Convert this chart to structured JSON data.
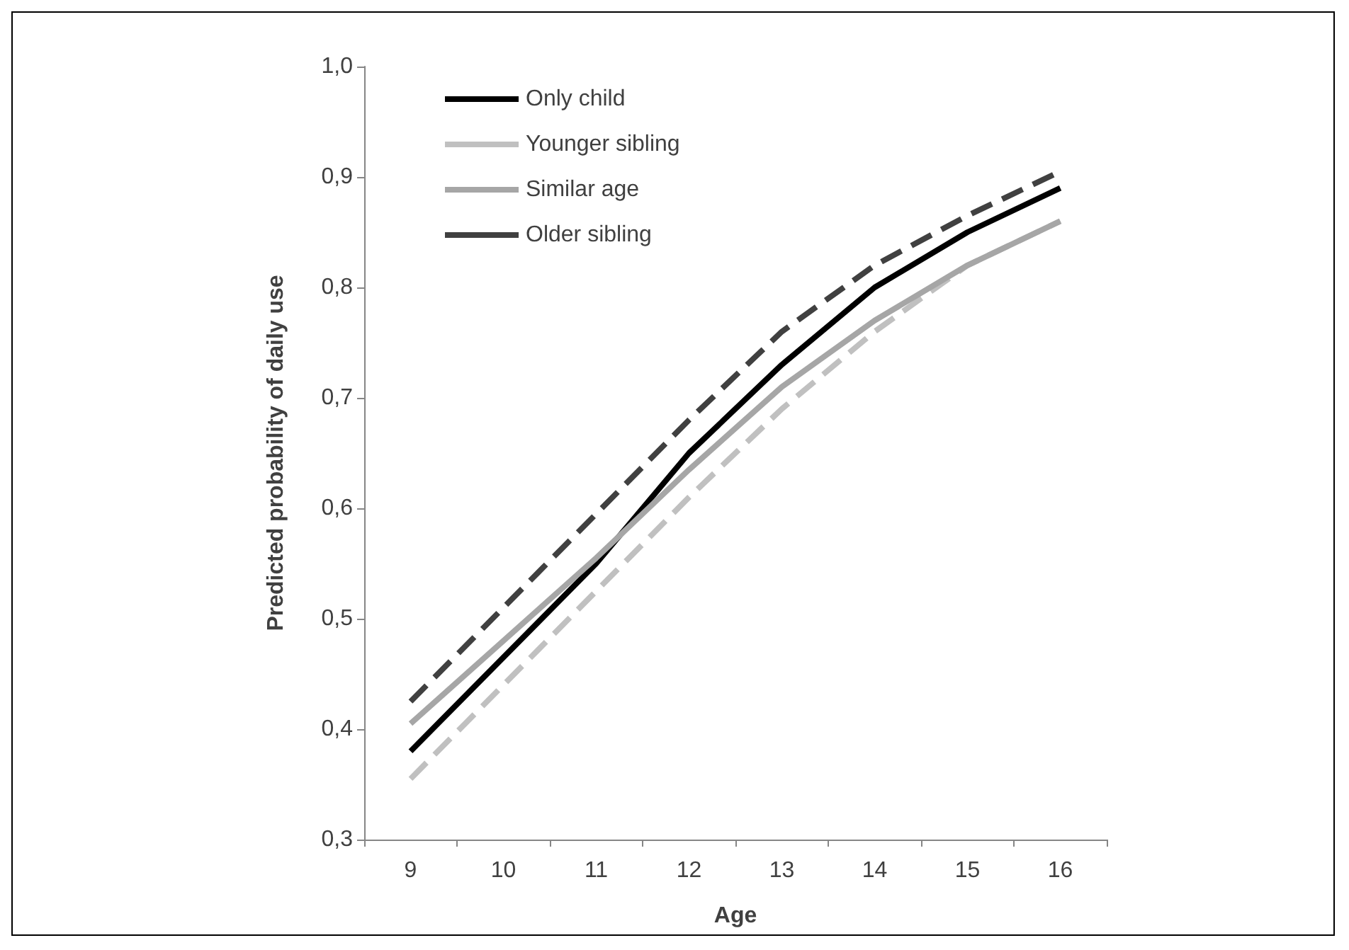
{
  "chart_data": {
    "type": "line",
    "xlabel": "Age",
    "ylabel": "Predicted probability of daily use",
    "categories": [
      "9",
      "10",
      "11",
      "12",
      "13",
      "14",
      "15",
      "16"
    ],
    "series": [
      {
        "name": "Only child",
        "color": "#000000",
        "line_style": "solid",
        "values": [
          0.38,
          0.465,
          0.55,
          0.65,
          0.73,
          0.8,
          0.85,
          0.89
        ]
      },
      {
        "name": "Younger sibling",
        "color": "#c0c0c0",
        "line_style": "dashed",
        "values": [
          0.355,
          0.44,
          0.525,
          0.61,
          0.69,
          0.76,
          0.82,
          0.86
        ]
      },
      {
        "name": "Similar age",
        "color": "#a6a6a6",
        "line_style": "solid",
        "values": [
          0.405,
          0.48,
          0.555,
          0.635,
          0.71,
          0.77,
          0.82,
          0.86
        ]
      },
      {
        "name": "Older sibling",
        "color": "#404040",
        "line_style": "dashed",
        "values": [
          0.425,
          0.51,
          0.595,
          0.68,
          0.76,
          0.82,
          0.865,
          0.905
        ]
      }
    ],
    "ylim": [
      0.3,
      1.0
    ],
    "yticks": [
      {
        "value": 0.3,
        "label": "0,3"
      },
      {
        "value": 0.4,
        "label": "0,4"
      },
      {
        "value": 0.5,
        "label": "0,5"
      },
      {
        "value": 0.6,
        "label": "0,6"
      },
      {
        "value": 0.7,
        "label": "0,7"
      },
      {
        "value": 0.8,
        "label": "0,8"
      },
      {
        "value": 0.9,
        "label": "0,9"
      },
      {
        "value": 1.0,
        "label": "1,0"
      }
    ],
    "grid": false,
    "legend": "top left",
    "marker": "none"
  }
}
